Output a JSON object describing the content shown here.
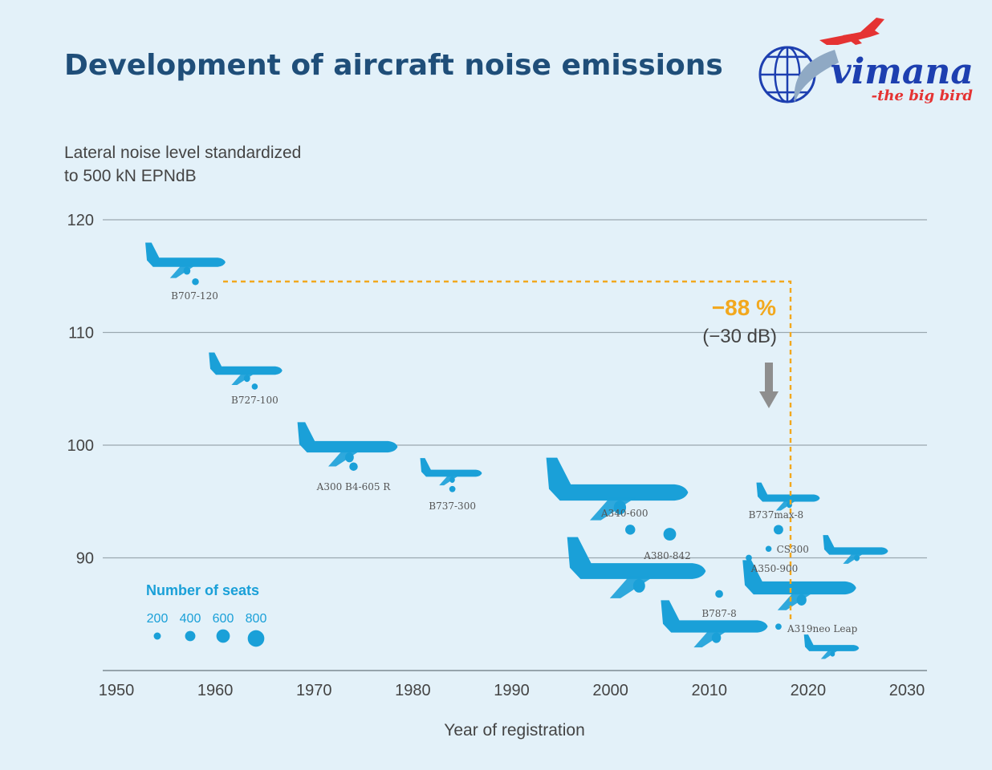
{
  "title": "Development of aircraft noise emissions",
  "logo": {
    "text": "vimana",
    "tagline": "-the big bird"
  },
  "colors": {
    "background": "#e3f1f9",
    "title": "#1f4e79",
    "text": "#444444",
    "grid": "#9aa8b0",
    "aircraft": "#1aa0d8",
    "annotation": "#f2a81e",
    "arrow": "#8e8e8e",
    "logo_blue": "#1d3fb0",
    "logo_red": "#e53333"
  },
  "annotation": {
    "percent": "−88 %",
    "db": "(−30 dB)"
  },
  "chart_data": {
    "type": "scatter",
    "ylabel": "Lateral noise level standardized\nto 500 kN EPNdB",
    "xlabel": "Year of registration",
    "xlim": [
      1950,
      2030
    ],
    "ylim": [
      80,
      120
    ],
    "xticks": [
      "1950",
      "1960",
      "1970",
      "1980",
      "1990",
      "2000",
      "2010",
      "2020",
      "2030"
    ],
    "yticks": [
      "90",
      "100",
      "110",
      "120"
    ],
    "grid": true,
    "size_legend": {
      "title": "Number of seats",
      "labels": [
        "200",
        "400",
        "600",
        "800"
      ],
      "values": [
        200,
        400,
        600,
        800
      ]
    },
    "points": [
      {
        "label": "B707-120",
        "x": 1958,
        "y": 114.5,
        "seats": 180
      },
      {
        "label": "B727-100",
        "x": 1964,
        "y": 105.2,
        "seats": 130
      },
      {
        "label": "A300 B4-605 R",
        "x": 1974,
        "y": 98.1,
        "seats": 280
      },
      {
        "label": "B737-300",
        "x": 1984,
        "y": 96.1,
        "seats": 140
      },
      {
        "label": "A340-600",
        "x": 2002,
        "y": 92.5,
        "seats": 380
      },
      {
        "label": "A380-842",
        "x": 2006,
        "y": 92.1,
        "seats": 550
      },
      {
        "label": "B787-8",
        "x": 2011,
        "y": 86.8,
        "seats": 240
      },
      {
        "label": "A350-900",
        "x": 2014,
        "y": 90.0,
        "seats": 140
      },
      {
        "label": "CS300",
        "x": 2016,
        "y": 90.8,
        "seats": 130
      },
      {
        "label": "B737max-8",
        "x": 2017,
        "y": 92.5,
        "seats": 350
      },
      {
        "label": "A319neo Leap",
        "x": 2017,
        "y": 83.9,
        "seats": 140
      }
    ]
  }
}
